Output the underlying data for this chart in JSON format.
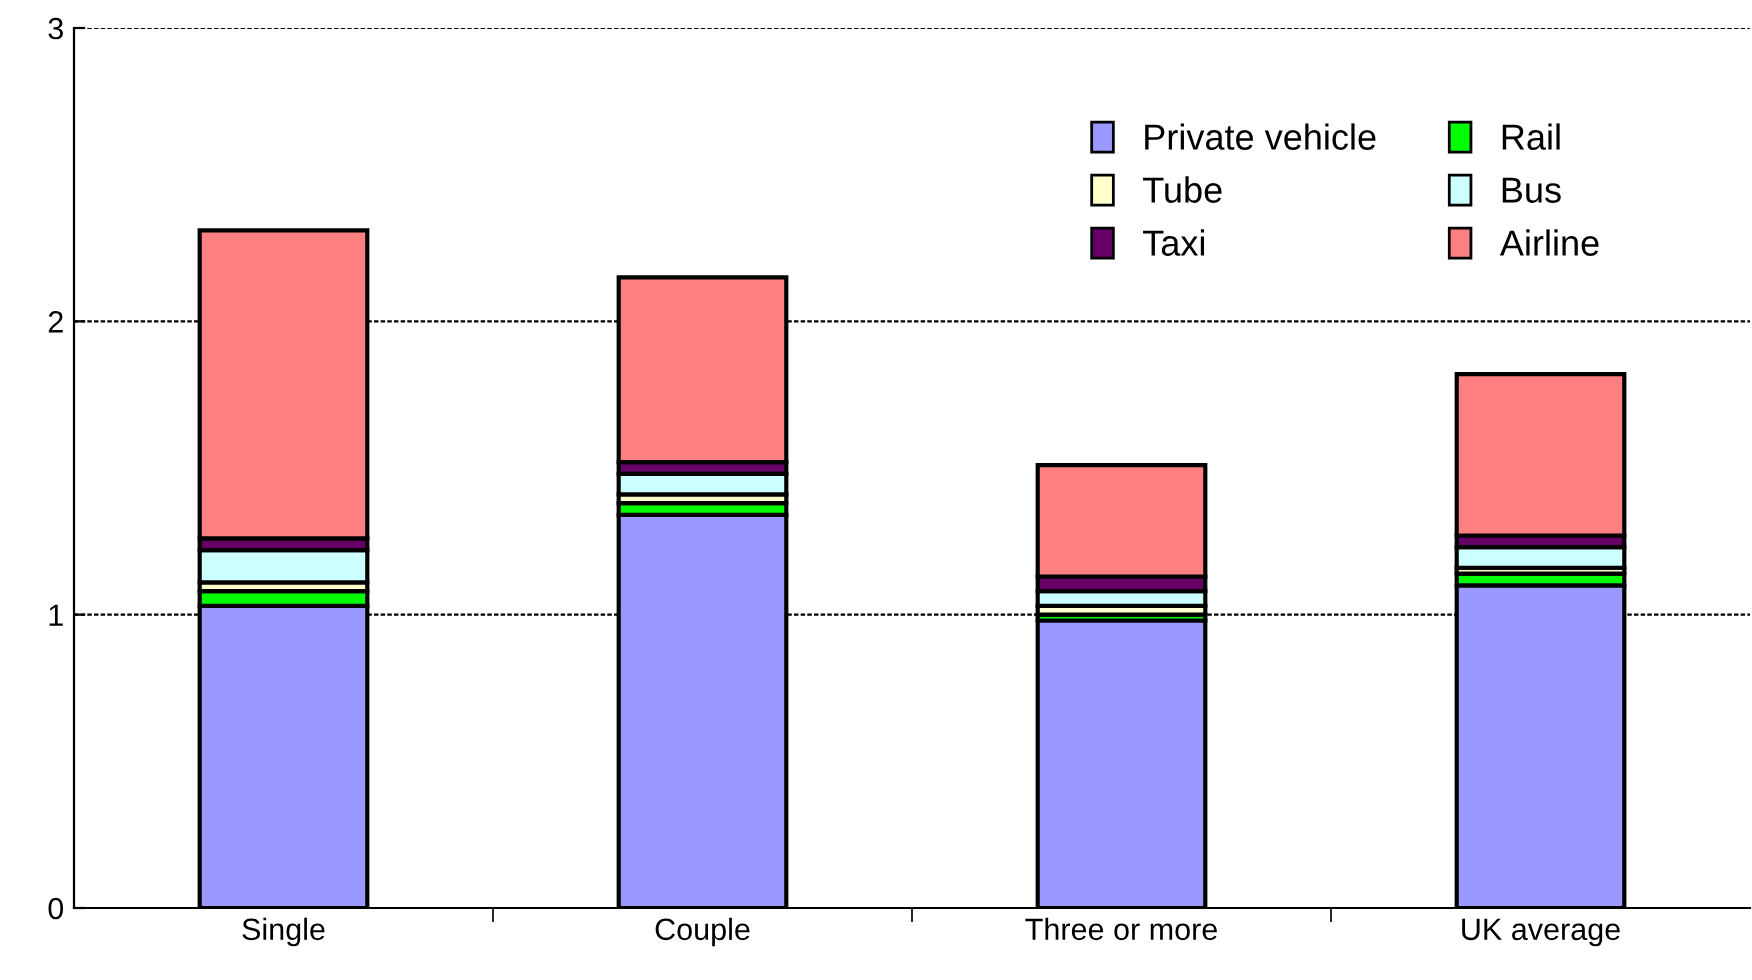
{
  "chart_data": {
    "type": "bar",
    "stacked": true,
    "categories": [
      "Single",
      "Couple",
      "Three or more",
      "UK average"
    ],
    "series": [
      {
        "name": "Private vehicle",
        "color": "#9999ff",
        "values": [
          1.03,
          1.34,
          0.98,
          1.1
        ]
      },
      {
        "name": "Rail",
        "color": "#00ff00",
        "values": [
          0.05,
          0.04,
          0.02,
          0.04
        ]
      },
      {
        "name": "Tube",
        "color": "#ffffcc",
        "values": [
          0.03,
          0.03,
          0.03,
          0.02
        ]
      },
      {
        "name": "Bus",
        "color": "#ccffff",
        "values": [
          0.11,
          0.07,
          0.05,
          0.07
        ]
      },
      {
        "name": "Taxi",
        "color": "#660066",
        "values": [
          0.04,
          0.04,
          0.05,
          0.04
        ]
      },
      {
        "name": "Airline",
        "color": "#ff8080",
        "values": [
          1.05,
          0.63,
          0.38,
          0.55
        ]
      }
    ],
    "ylim": [
      0,
      3
    ],
    "yticks": [
      0,
      1,
      2,
      3
    ],
    "grid": "y",
    "legend": "top right"
  }
}
